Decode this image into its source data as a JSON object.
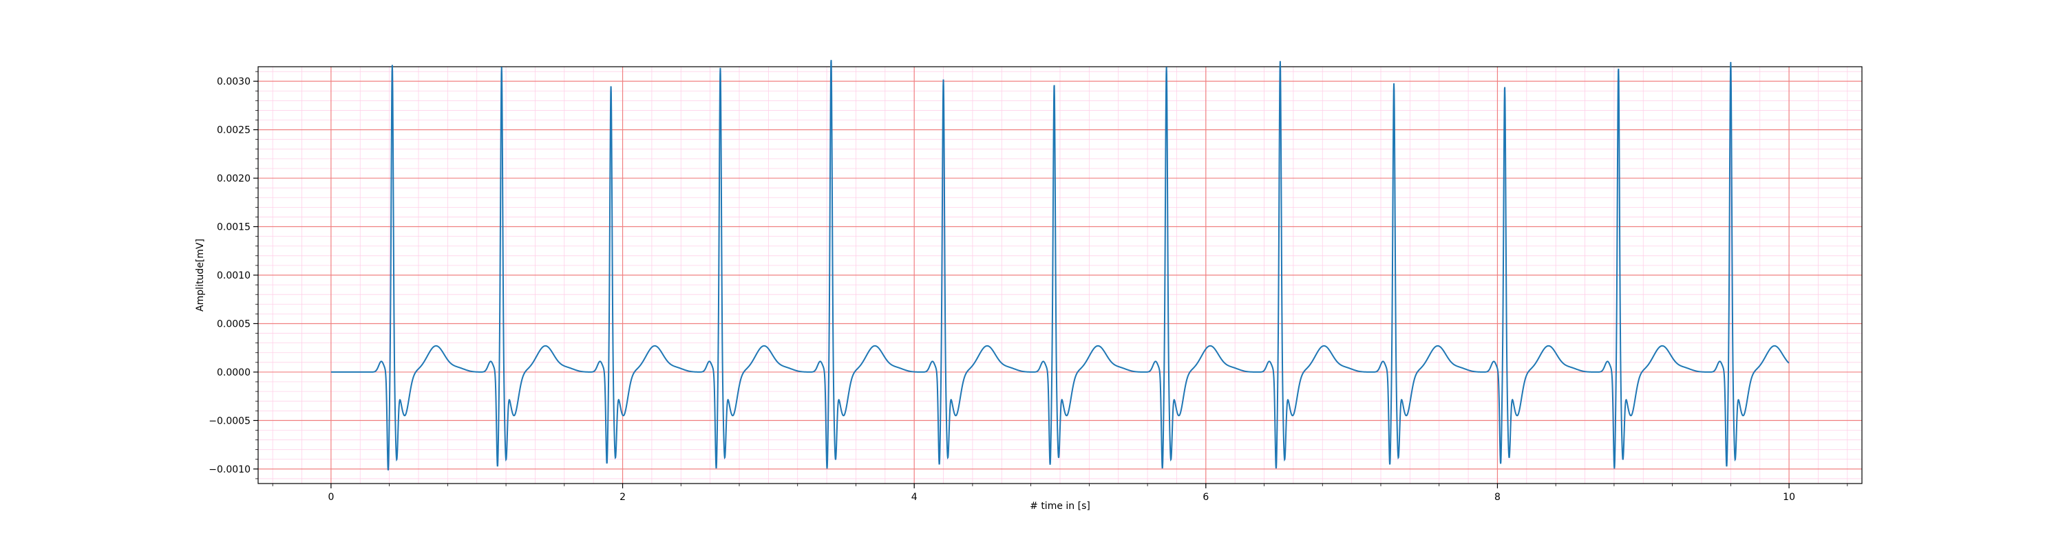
{
  "chart_data": {
    "type": "line",
    "title": "",
    "xlabel": "# time in [s]",
    "ylabel": "Amplitude[mV]",
    "xlim": [
      -0.5,
      10.5
    ],
    "ylim": [
      -0.00115,
      0.00315
    ],
    "x_ticks": [
      0,
      2,
      4,
      6,
      8,
      10
    ],
    "x_tick_labels": [
      "0",
      "2",
      "4",
      "6",
      "8",
      "10"
    ],
    "y_ticks": [
      -0.001,
      -0.0005,
      0.0,
      0.0005,
      0.001,
      0.0015,
      0.002,
      0.0025,
      0.003
    ],
    "y_tick_labels": [
      "−0.0010",
      "−0.0005",
      "0.0000",
      "0.0005",
      "0.0010",
      "0.0015",
      "0.0020",
      "0.0025",
      "0.0030"
    ],
    "grid": "major and minor grid (ECG paper style)",
    "colors": {
      "line": "#1f77b4",
      "major_grid": "#f08080",
      "minor_grid": "#ffd0e8"
    },
    "series": [
      {
        "name": "",
        "beats": [
          {
            "r_peak_time": 0.42,
            "r_peak_amplitude": 0.0029,
            "q_min": -0.00092,
            "s_min": -0.00062
          },
          {
            "r_peak_time": 1.17,
            "r_peak_amplitude": 0.00288,
            "q_min": -0.00088,
            "s_min": -0.00062
          },
          {
            "r_peak_time": 1.92,
            "r_peak_amplitude": 0.00268,
            "q_min": -0.00085,
            "s_min": -0.0006
          },
          {
            "r_peak_time": 2.67,
            "r_peak_amplitude": 0.00287,
            "q_min": -0.0009,
            "s_min": -0.0006
          },
          {
            "r_peak_time": 3.43,
            "r_peak_amplitude": 0.00296,
            "q_min": -0.0009,
            "s_min": -0.00062
          },
          {
            "r_peak_time": 4.2,
            "r_peak_amplitude": 0.00275,
            "q_min": -0.00086,
            "s_min": -0.0006
          },
          {
            "r_peak_time": 4.96,
            "r_peak_amplitude": 0.0027,
            "q_min": -0.00086,
            "s_min": -0.0006
          },
          {
            "r_peak_time": 5.73,
            "r_peak_amplitude": 0.00288,
            "q_min": -0.0009,
            "s_min": -0.00062
          },
          {
            "r_peak_time": 6.51,
            "r_peak_amplitude": 0.00294,
            "q_min": -0.0009,
            "s_min": -0.00062
          },
          {
            "r_peak_time": 7.29,
            "r_peak_amplitude": 0.00271,
            "q_min": -0.00086,
            "s_min": -0.0006
          },
          {
            "r_peak_time": 8.05,
            "r_peak_amplitude": 0.00268,
            "q_min": -0.00085,
            "s_min": -0.0006
          },
          {
            "r_peak_time": 8.83,
            "r_peak_amplitude": 0.00287,
            "q_min": -0.0009,
            "s_min": -0.00062
          },
          {
            "r_peak_time": 9.6,
            "r_peak_amplitude": 0.00293,
            "q_min": -0.00088,
            "s_min": -0.00062
          }
        ],
        "t_wave_amplitude": 0.00027,
        "baseline": 0.0,
        "time_range": [
          0,
          10
        ]
      }
    ]
  }
}
